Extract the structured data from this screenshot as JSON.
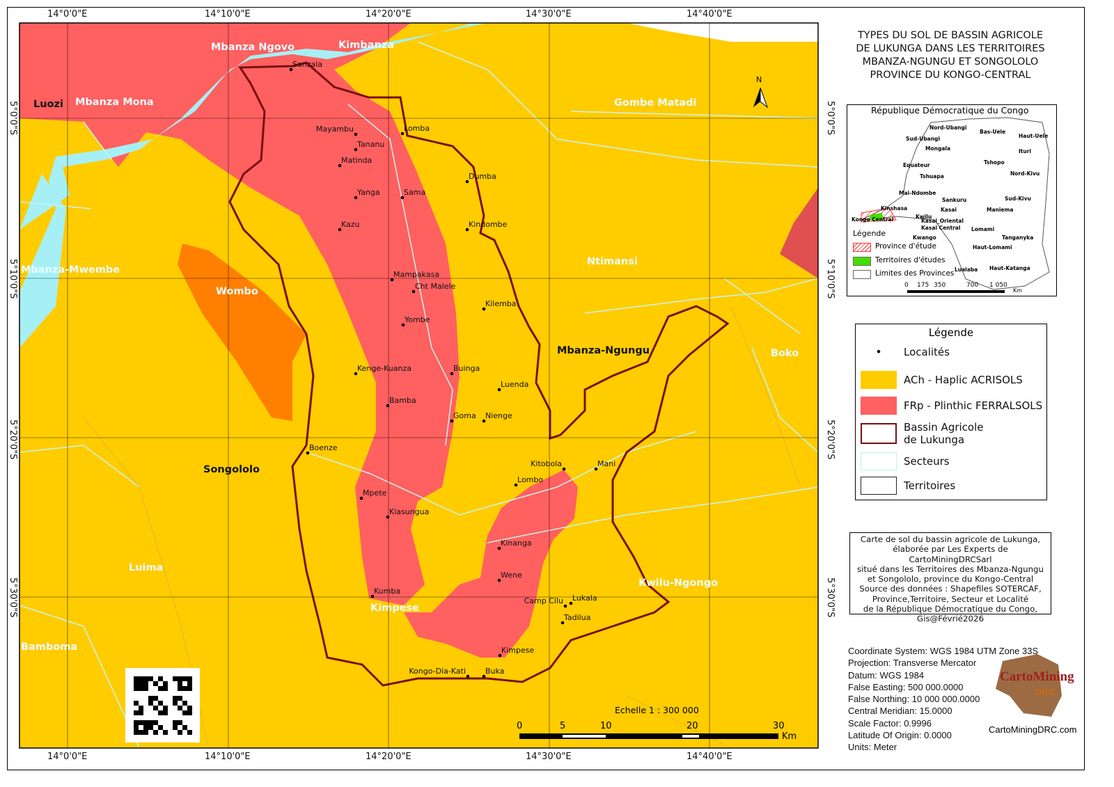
{
  "title": [
    "TYPES DU SOL DE BASSIN AGRICOLE",
    "DE LUKUNGA DANS LES TERRITOIRES",
    "MBANZA-NGUNGU ET SONGOLOLO",
    "PROVINCE DU KONGO-CENTRAL"
  ],
  "colors": {
    "acrisols": "#FFCC00",
    "ferralsols": "#FF6060",
    "orange_zone": "#FF7F00",
    "water": "#A6F0F5",
    "basin": "#7A0F0F",
    "sector_line": "#C8F4F0"
  },
  "grid": {
    "top": [
      "14°0'0\"E",
      "14°10'0\"E",
      "14°20'0\"E",
      "14°30'0\"E",
      "14°40'0\"E"
    ],
    "bottom": [
      "14°0'0\"E",
      "14°10'0\"E",
      "14°20'0\"E",
      "14°30'0\"E",
      "14°40'0\"E"
    ],
    "right": [
      "5°0'0\"S",
      "5°10'0\"S",
      "5°20'0\"S",
      "5°30'0\"S"
    ],
    "left": [
      "5°0'0\"S",
      "5°10'0\"S",
      "5°20'0\"S",
      "5°30'0\"S"
    ]
  },
  "north": "N",
  "sectors": [
    "Mbanza Ngovo",
    "Kimbanza",
    "Mbanza Mona",
    "Gombe Matadi",
    "Mbanza-Mwembe",
    "Wombo",
    "Ntimansi",
    "Boko",
    "Luima",
    "Kwilu-Ngongo",
    "Kimpese",
    "Bamboma"
  ],
  "territories": [
    "Luozi",
    "Mbanza-Ngungu",
    "Songololo"
  ],
  "localities": [
    "Sanzala",
    "Mayambu",
    "Lomba",
    "Tananu",
    "Matinda",
    "Yanga",
    "Sama",
    "Dumba",
    "Kindombe",
    "Kazu",
    "Mampakasa",
    "Cht Malele",
    "Kilemba",
    "Yombe",
    "Kenge-Kuanza",
    "Buinga",
    "Luenda",
    "Bamba",
    "Goma",
    "Nienge",
    "Boenze",
    "Kitobola",
    "Mani",
    "Lombo",
    "Mpete",
    "Kiasungua",
    "Kinanga",
    "Wene",
    "Kumba",
    "Camp Cilu",
    "Lukala",
    "Tadilua",
    "Kimpese",
    "Kongo-Dia-Kati",
    "Buka"
  ],
  "scalebar": {
    "label": "Echelle 1 : 300 000",
    "ticks": [
      "0",
      "5",
      "10",
      "20",
      "30"
    ],
    "unit": "Km"
  },
  "inset": {
    "title": "République Démocratique du Congo",
    "provinces": [
      "Nord-Ubangi",
      "Bas-Uele",
      "Haut-Uele",
      "Sud-Ubangi",
      "Mongala",
      "Ituri",
      "Equateur",
      "Tshopo",
      "Tshuapa",
      "Nord-Kivu",
      "Mai-Ndombe",
      "Sankuru",
      "Sud-Kivu",
      "Kinshasa",
      "Kwilu",
      "Kasai",
      "Maniema",
      "Kongo Central",
      "Kasai_Oriental",
      "Kasai Central",
      "Lomami",
      "Tanganyka",
      "Kwango",
      "Haut-Lomami",
      "Lualaba",
      "Haut-Katanga"
    ],
    "legend_title": "Légende",
    "legend": [
      "Province d'étude",
      "Territoires d'études",
      "Limites des Provinces"
    ],
    "scale_ticks": [
      "0",
      "175",
      "350",
      "700",
      "1 050"
    ],
    "scale_unit": "Km"
  },
  "legend": {
    "title": "Légende",
    "items": [
      "Localités",
      "ACh  -  Haplic ACRISOLS",
      "FRp  -  Plinthic FERRALSOLS",
      "Bassin Agricole\nde Lukunga",
      "Secteurs",
      "Territoires"
    ]
  },
  "note": [
    "Carte de sol du bassin agricole de Lukunga,",
    "élaborée par Les Experts de CartoMiningDRCSarl",
    "situé dans les Territoires des Mbanza-Ngungu",
    "et Songololo, province du Kongo-Central",
    "Source des données : Shapefiles SOTERCAF,",
    "Province,Territoire,  Secteur et Localité",
    "de la République Démocratique du Congo,",
    "Gis@Févrié2026"
  ],
  "projection": [
    "Coordinate System: WGS 1984 UTM Zone 33S",
    "Projection: Transverse Mercator",
    "Datum: WGS 1984",
    "False Easting: 500 000.0000",
    "False Northing: 10 000 000.0000",
    "Central Meridian: 15.0000",
    "Scale Factor: 0.9996",
    "Latitude Of Origin: 0.0000",
    "Units: Meter"
  ],
  "logo": {
    "name": "CartoMining",
    "sub": "DRC",
    "url": "CartoMiningDRC.com"
  }
}
